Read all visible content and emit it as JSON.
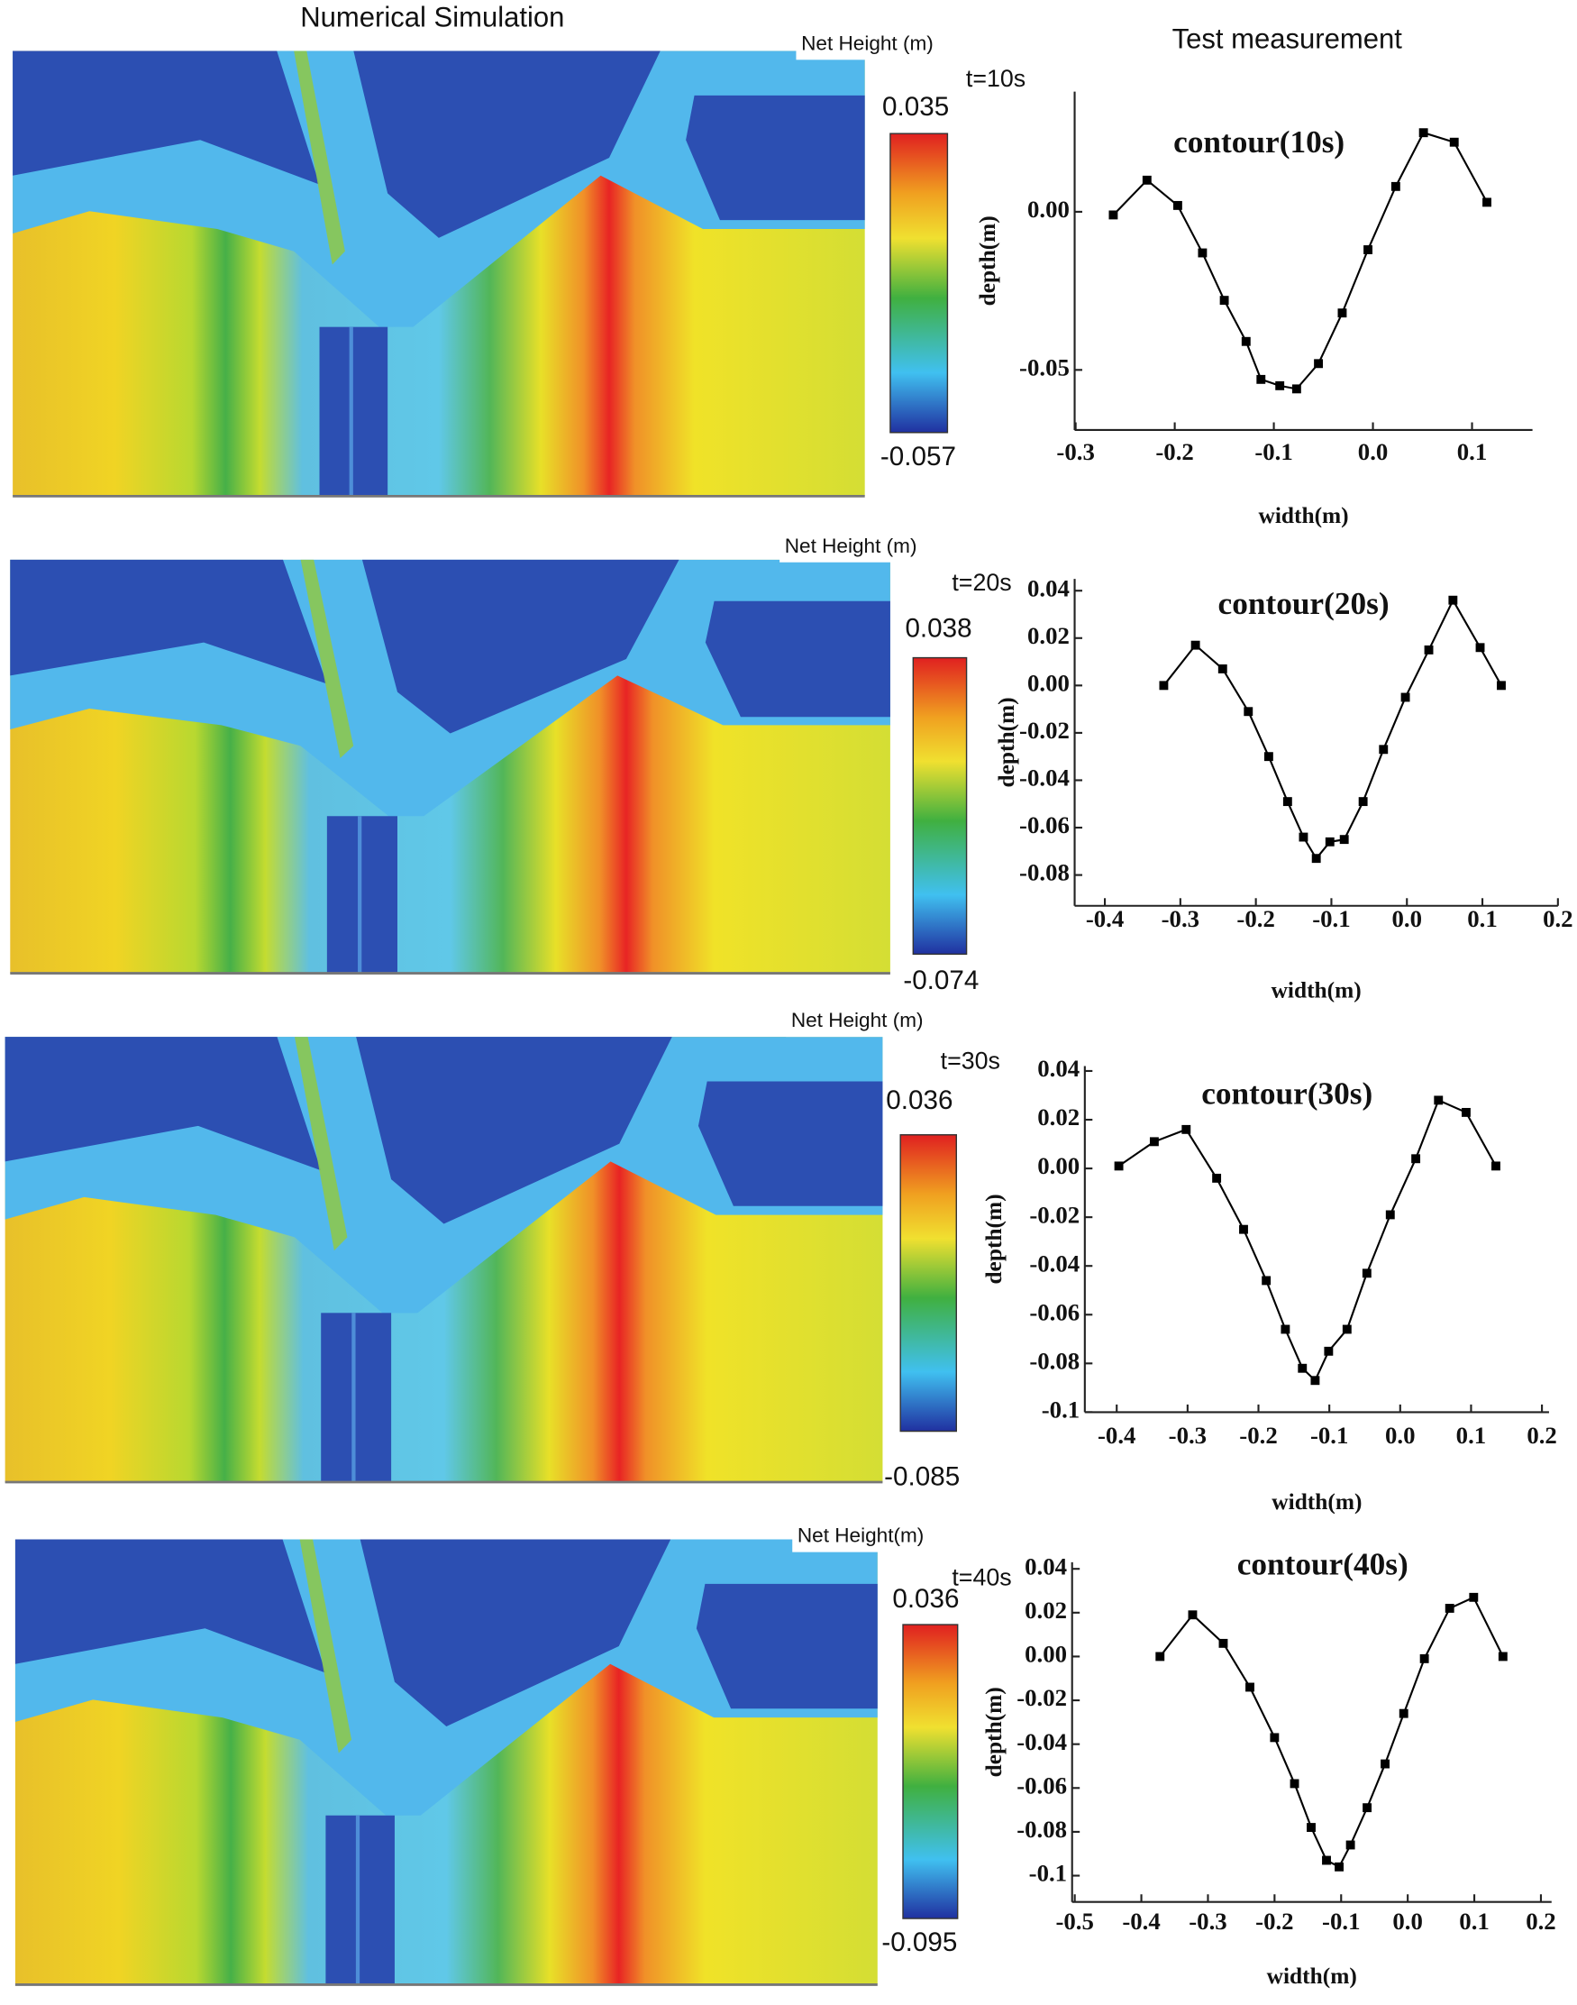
{
  "header": {
    "left": "Numerical Simulation",
    "right": "Test measurement"
  },
  "simulations": [
    {
      "legend_title": "Net Height (m)",
      "time": "t=10s",
      "max": 0.035,
      "min": -0.057
    },
    {
      "legend_title": "Net Height (m)",
      "time": "t=20s",
      "max": 0.038,
      "min": -0.074
    },
    {
      "legend_title": "Net Height (m)",
      "time": "t=30s",
      "max": 0.036,
      "min": -0.085
    },
    {
      "legend_title": "Net Height(m)",
      "time": "t=40s",
      "max": 0.036,
      "min": -0.095
    }
  ],
  "chart_data": [
    {
      "type": "line",
      "title": "contour(10s)",
      "x_label": "width(m)",
      "y_label": "depth(m)",
      "color": "#000000",
      "x": [
        -0.262,
        -0.228,
        -0.197,
        -0.172,
        -0.15,
        -0.128,
        -0.113,
        -0.094,
        -0.077,
        -0.055,
        -0.031,
        -0.005,
        0.023,
        0.051,
        0.082,
        0.115
      ],
      "values": [
        -0.001,
        0.01,
        0.002,
        -0.013,
        -0.028,
        -0.041,
        -0.053,
        -0.055,
        -0.056,
        -0.048,
        -0.032,
        -0.012,
        0.008,
        0.025,
        0.022,
        0.003
      ],
      "xlim": [
        -0.301,
        0.161
      ],
      "ylim": [
        -0.069,
        0.038
      ],
      "xticks": [
        -0.3,
        -0.2,
        -0.1,
        {
          "value": 0,
          "label": "0.0"
        },
        0.1
      ],
      "yticks": [
        {
          "value": 0,
          "label": "0.00"
        },
        -0.05
      ]
    },
    {
      "type": "line",
      "title": "contour(20s)",
      "x_label": "width(m)",
      "y_label": "depth(m)",
      "color": "#000000",
      "x": [
        -0.322,
        -0.28,
        -0.244,
        -0.21,
        -0.183,
        -0.158,
        -0.137,
        -0.12,
        -0.102,
        -0.083,
        -0.058,
        -0.031,
        -0.002,
        0.029,
        0.061,
        0.097,
        0.125
      ],
      "values": [
        0,
        0.017,
        0.007,
        -0.011,
        -0.03,
        -0.049,
        -0.064,
        -0.073,
        -0.066,
        -0.065,
        -0.049,
        -0.027,
        -0.005,
        0.015,
        0.036,
        0.016,
        0
      ],
      "xlim": [
        -0.44,
        0.2
      ],
      "ylim": [
        -0.093,
        0.045
      ],
      "xticks": [
        -0.4,
        -0.3,
        -0.2,
        -0.1,
        {
          "value": 0,
          "label": "0.0"
        },
        0.1,
        0.2
      ],
      "yticks": [
        0.04,
        0.02,
        {
          "value": 0,
          "label": "0.00"
        },
        -0.02,
        -0.04,
        -0.06,
        -0.08
      ]
    },
    {
      "type": "line",
      "title": "contour(30s)",
      "x_label": "width(m)",
      "y_label": "depth(m)",
      "color": "#000000",
      "x": [
        -0.397,
        -0.347,
        -0.302,
        -0.259,
        -0.221,
        -0.189,
        -0.162,
        -0.138,
        -0.12,
        -0.101,
        -0.075,
        -0.047,
        -0.014,
        0.022,
        0.054,
        0.093,
        0.135
      ],
      "values": [
        0.001,
        0.011,
        0.016,
        -0.004,
        -0.025,
        -0.046,
        -0.066,
        -0.082,
        -0.087,
        -0.075,
        -0.066,
        -0.043,
        -0.019,
        0.004,
        0.028,
        0.023,
        0.001
      ],
      "xlim": [
        -0.445,
        0.21
      ],
      "ylim": [
        -0.1,
        0.042
      ],
      "xticks": [
        -0.4,
        -0.3,
        -0.2,
        -0.1,
        {
          "value": 0,
          "label": "0.0"
        },
        0.1,
        0.2
      ],
      "yticks": [
        0.04,
        0.02,
        {
          "value": 0,
          "label": "0.00"
        },
        -0.02,
        -0.04,
        -0.06,
        -0.08,
        -0.1
      ]
    },
    {
      "type": "line",
      "title": "contour(40s)",
      "x_label": "width(m)",
      "y_label": "depth(m)",
      "color": "#000000",
      "x": [
        -0.372,
        -0.323,
        -0.277,
        -0.237,
        -0.2,
        -0.17,
        -0.145,
        -0.122,
        -0.103,
        -0.086,
        -0.061,
        -0.034,
        -0.006,
        0.025,
        0.063,
        0.099,
        0.143
      ],
      "values": [
        0,
        0.019,
        0.006,
        -0.014,
        -0.037,
        -0.058,
        -0.078,
        -0.093,
        -0.096,
        -0.086,
        -0.069,
        -0.049,
        -0.026,
        -0.001,
        0.022,
        0.027,
        0
      ],
      "xlim": [
        -0.504,
        0.216
      ],
      "ylim": [
        -0.112,
        0.043
      ],
      "xticks": [
        -0.5,
        -0.4,
        -0.3,
        -0.2,
        -0.1,
        {
          "value": 0,
          "label": "0.0"
        },
        0.1,
        0.2
      ],
      "yticks": [
        0.04,
        0.02,
        {
          "value": 0,
          "label": "0.00"
        },
        -0.02,
        -0.04,
        -0.06,
        -0.08,
        -0.1
      ]
    }
  ]
}
